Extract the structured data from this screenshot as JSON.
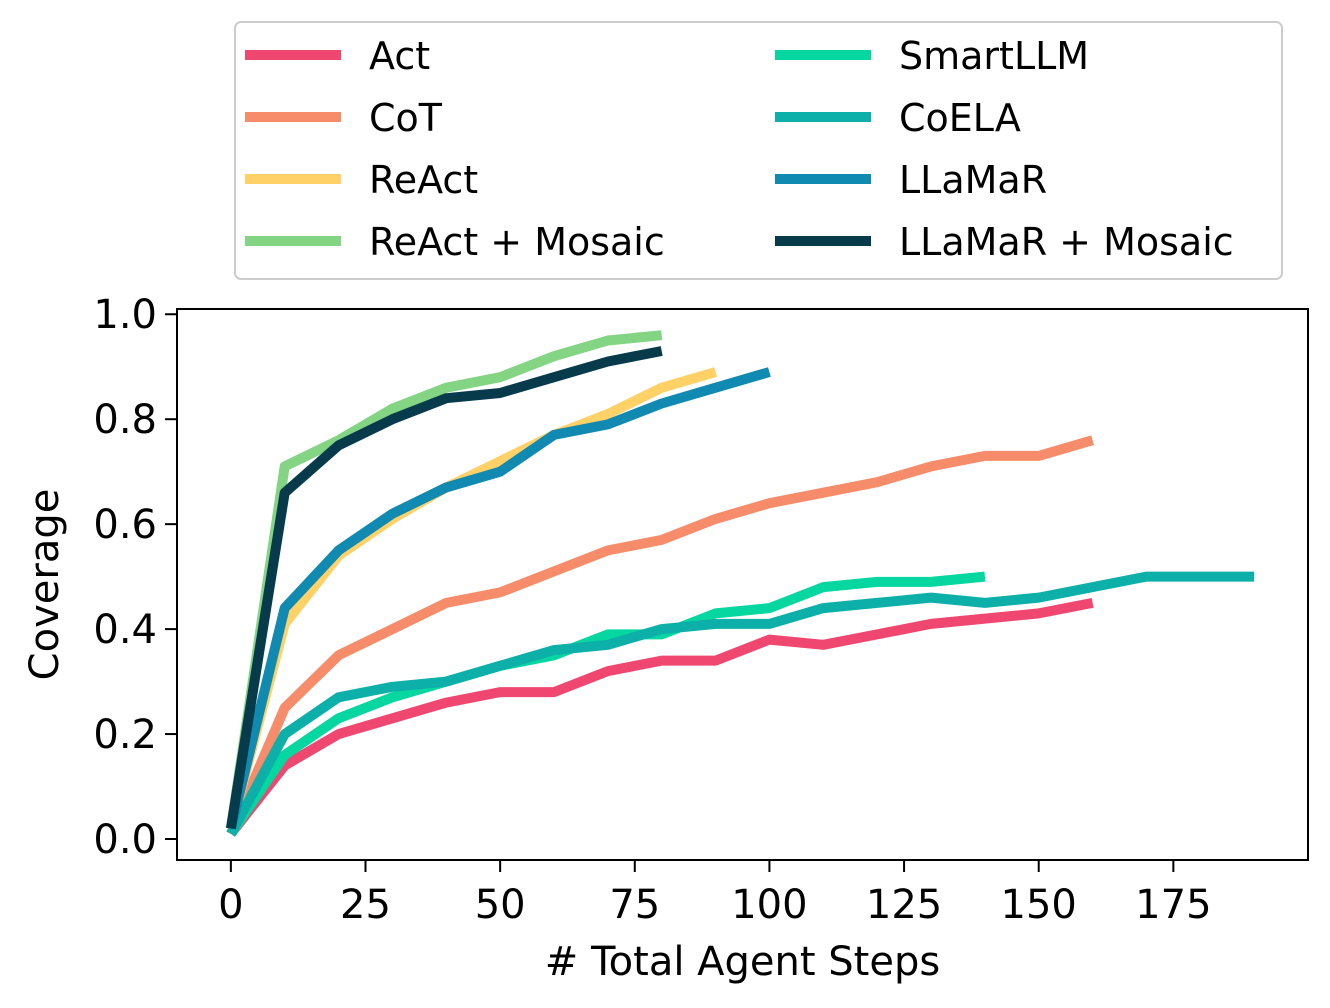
{
  "chart_data": {
    "type": "line",
    "title": "",
    "xlabel": "# Total Agent Steps",
    "ylabel": "Coverage",
    "xlim": [
      -10,
      200
    ],
    "ylim": [
      -0.04,
      1.01
    ],
    "xticks": [
      0,
      25,
      50,
      75,
      100,
      125,
      150,
      175
    ],
    "yticks": [
      0.0,
      0.2,
      0.4,
      0.6,
      0.8,
      1.0
    ],
    "xtick_labels": [
      "0",
      "25",
      "50",
      "75",
      "100",
      "125",
      "150",
      "175"
    ],
    "ytick_labels": [
      "0.0",
      "0.2",
      "0.4",
      "0.6",
      "0.8",
      "1.0"
    ],
    "grid": false,
    "legend_position": "top, outside plot, two columns",
    "series": [
      {
        "name": "Act",
        "color": "#EF476F",
        "x": [
          0,
          10,
          20,
          30,
          40,
          50,
          60,
          70,
          80,
          90,
          100,
          110,
          120,
          130,
          140,
          150,
          160
        ],
        "y": [
          0.01,
          0.14,
          0.2,
          0.23,
          0.26,
          0.28,
          0.28,
          0.32,
          0.34,
          0.34,
          0.38,
          0.37,
          0.39,
          0.41,
          0.42,
          0.43,
          0.45
        ]
      },
      {
        "name": "CoT",
        "color": "#F78C6B",
        "x": [
          0,
          10,
          20,
          30,
          40,
          50,
          60,
          70,
          80,
          90,
          100,
          110,
          120,
          130,
          140,
          150,
          160
        ],
        "y": [
          0.01,
          0.25,
          0.35,
          0.4,
          0.45,
          0.47,
          0.51,
          0.55,
          0.57,
          0.61,
          0.64,
          0.66,
          0.68,
          0.71,
          0.73,
          0.73,
          0.76
        ]
      },
      {
        "name": "ReAct",
        "color": "#FFD166",
        "x": [
          0,
          10,
          20,
          30,
          40,
          50,
          60,
          70,
          80,
          90
        ],
        "y": [
          0.02,
          0.41,
          0.54,
          0.61,
          0.67,
          0.72,
          0.77,
          0.81,
          0.86,
          0.89
        ]
      },
      {
        "name": "ReAct + Mosaic",
        "color": "#83D483",
        "x": [
          0,
          10,
          20,
          30,
          40,
          50,
          60,
          70,
          80
        ],
        "y": [
          0.02,
          0.71,
          0.76,
          0.82,
          0.86,
          0.88,
          0.92,
          0.95,
          0.96
        ]
      },
      {
        "name": "SmartLLM",
        "color": "#06D6A0",
        "x": [
          0,
          10,
          20,
          30,
          40,
          50,
          60,
          70,
          80,
          90,
          100,
          110,
          120,
          130,
          140
        ],
        "y": [
          0.01,
          0.16,
          0.23,
          0.27,
          0.3,
          0.33,
          0.35,
          0.39,
          0.39,
          0.43,
          0.44,
          0.48,
          0.49,
          0.49,
          0.5
        ]
      },
      {
        "name": "CoELA",
        "color": "#0CB0A9",
        "x": [
          0,
          10,
          20,
          30,
          40,
          50,
          60,
          70,
          80,
          90,
          100,
          110,
          120,
          130,
          140,
          150,
          160,
          170,
          180,
          190
        ],
        "y": [
          0.01,
          0.2,
          0.27,
          0.29,
          0.3,
          0.33,
          0.36,
          0.37,
          0.4,
          0.41,
          0.41,
          0.44,
          0.45,
          0.46,
          0.45,
          0.46,
          0.48,
          0.5,
          0.5,
          0.5
        ]
      },
      {
        "name": "LLaMaR",
        "color": "#118AB2",
        "x": [
          0,
          10,
          20,
          30,
          40,
          50,
          60,
          70,
          80,
          90,
          100
        ],
        "y": [
          0.02,
          0.44,
          0.55,
          0.62,
          0.67,
          0.7,
          0.77,
          0.79,
          0.83,
          0.86,
          0.89
        ]
      },
      {
        "name": "LLaMaR + Mosaic",
        "color": "#073B4C",
        "x": [
          0,
          10,
          20,
          30,
          40,
          50,
          60,
          70,
          80
        ],
        "y": [
          0.02,
          0.66,
          0.75,
          0.8,
          0.84,
          0.85,
          0.88,
          0.91,
          0.93
        ]
      }
    ]
  }
}
